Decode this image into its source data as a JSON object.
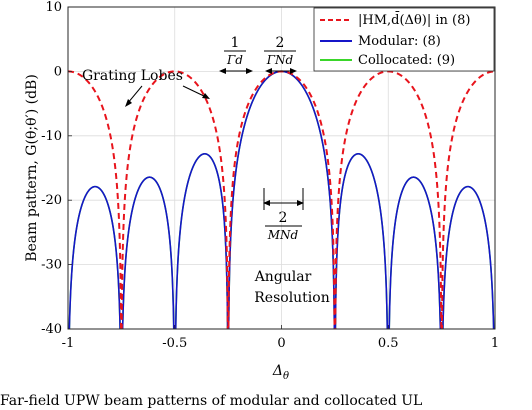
{
  "chart_data": {
    "type": "line",
    "xlabel": "Δθ",
    "ylabel": "Beam pattern, G(θ;θ′) (dB)",
    "xlim": [
      -1,
      1
    ],
    "ylim": [
      -40,
      10
    ],
    "xticks": [
      -1,
      -0.5,
      0,
      0.5,
      1
    ],
    "yticks": [
      -40,
      -30,
      -20,
      -10,
      0,
      10
    ],
    "xtick_labels": [
      "-1",
      "-0.5",
      "0",
      "0.5",
      "1"
    ],
    "ytick_labels": [
      "-40",
      "-30",
      "-20",
      "-10",
      "0",
      "10"
    ],
    "grid": true,
    "legend_position": "top-right",
    "series": [
      {
        "name": "|H_{M,d̄}(Δθ)| in (8)",
        "legend_text": "|HM,d̄(Δθ)| in (8)",
        "color": "#e8141c",
        "style": "dashed",
        "model": {
          "kind": "array_factor",
          "elements": 2,
          "spacing_over_wavelength": 2.0
        }
      },
      {
        "name": "Modular: (8)",
        "legend_text": "Modular: (8)",
        "color": "#1515c8",
        "style": "solid",
        "model": {
          "kind": "modular",
          "sub_elements": 4,
          "sub_spacing": 0.5,
          "modules": 2,
          "module_spacing": 2.0
        }
      },
      {
        "name": "Collocated: (9)",
        "legend_text": "Collocated: (9)",
        "color": "#3ad62a",
        "style": "solid",
        "model": {
          "kind": "array_factor",
          "elements": 8,
          "spacing_over_wavelength": 0.5
        }
      }
    ],
    "annotations": [
      {
        "text": "Grating Lobes",
        "x": -0.82,
        "y": 0
      },
      {
        "text": "1/(Γd)",
        "x": -0.22,
        "y": 4.5
      },
      {
        "text": "2/(ΓNd)",
        "x": 0.0,
        "y": 4.5
      },
      {
        "text": "2/(MNd)",
        "x": 0.0,
        "y": -22.5
      },
      {
        "text": "Angular",
        "x": 0.0,
        "y": -31.5
      },
      {
        "text": "Resolution",
        "x": 0.0,
        "y": -35.5
      }
    ]
  },
  "labels": {
    "grating_lobes": "Grating Lobes",
    "ann1_num": "1",
    "ann1_den": "Γd",
    "ann2_num": "2",
    "ann2_den": "ΓNd",
    "ann3_num": "2",
    "ann3_den": "MNd",
    "angular": "Angular",
    "resolution": "Resolution"
  },
  "caption": "Far-field UPW beam patterns of modular and collocated UL"
}
